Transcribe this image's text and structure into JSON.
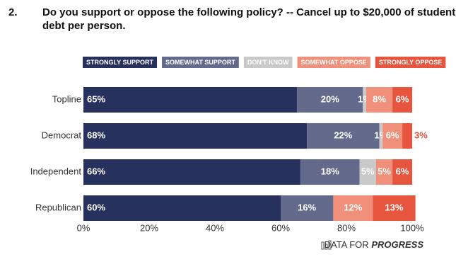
{
  "question_number": "2.",
  "source": {
    "prefix": "DATA FOR",
    "name": "PROGRESS"
  },
  "chart_data": {
    "type": "stacked-bar-horizontal",
    "title": [
      "Do you support or oppose the following policy? -- Cancel up to $20,000 of student",
      "debt per person."
    ],
    "categories": [
      "Topline",
      "Democrat",
      "Independent",
      "Republican"
    ],
    "series": [
      {
        "name": "STRONGLY SUPPORT",
        "color": "#27315e",
        "values": [
          65,
          68,
          66,
          60
        ],
        "value_labels": [
          "65%",
          "68%",
          "66%",
          "60%"
        ]
      },
      {
        "name": "SOMEWHAT SUPPORT",
        "color": "#646a8c",
        "values": [
          20,
          22,
          18,
          16
        ],
        "value_labels": [
          "20%",
          "22%",
          "18%",
          "16%"
        ]
      },
      {
        "name": "DON'T KNOW",
        "color": "#c9c9c9",
        "values": [
          1,
          1,
          5,
          null
        ],
        "value_labels": [
          "1%",
          "1%",
          "5%",
          null
        ]
      },
      {
        "name": "SOMEWHAT OPPOSE",
        "color": "#f0907a",
        "values": [
          8,
          6,
          5,
          12
        ],
        "value_labels": [
          "8%",
          "6%",
          "5%",
          "12%"
        ]
      },
      {
        "name": "STRONGLY OPPOSE",
        "color": "#e8553f",
        "values": [
          6,
          3,
          6,
          13
        ],
        "value_labels": [
          "6%",
          "3%",
          "6%",
          "13%"
        ]
      }
    ],
    "xlim": [
      0,
      100
    ],
    "xticks": [
      {
        "value": 0,
        "label": "0%"
      },
      {
        "value": 20,
        "label": "20%"
      },
      {
        "value": 40,
        "label": "40%"
      },
      {
        "value": 60,
        "label": "60%"
      },
      {
        "value": 80,
        "label": "80%"
      },
      {
        "value": 100,
        "label": "100%"
      }
    ]
  }
}
